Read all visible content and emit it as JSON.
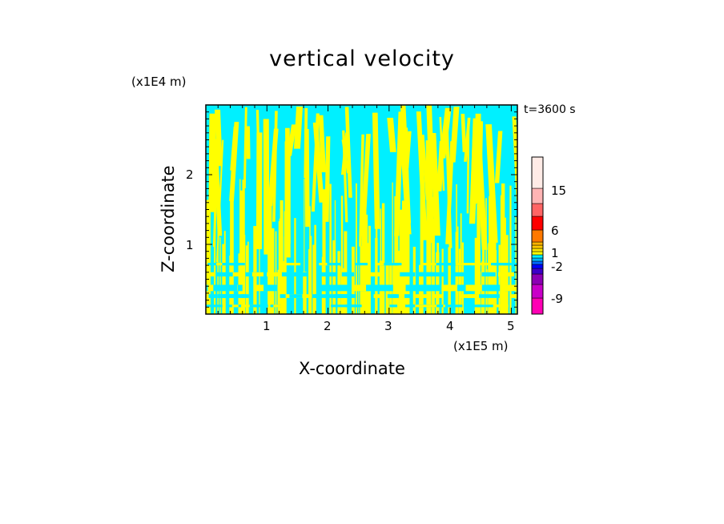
{
  "chart_data": {
    "type": "heatmap",
    "title": "vertical velocity",
    "xlabel": "X-coordinate",
    "ylabel": "Z-coordinate",
    "x_unit_label": "(x1E5 m)",
    "y_unit_label": "(x1E4 m)",
    "time_label": "t=3600 s",
    "xlim": [
      0,
      5.1
    ],
    "ylim": [
      0,
      3.0
    ],
    "x_ticks": [
      "1",
      "2",
      "3",
      "4",
      "5"
    ],
    "y_ticks": [
      "1",
      "2"
    ],
    "field_description": "Field dominated by small positive (yellow, ~0 to 1) and small negative (cyan, ~-1 to 0) values; dense narrow vertical plumes below z~1.5, broader streaks aloft.",
    "colorbar": {
      "levels": [
        {
          "color": "#ff00b4",
          "range": "< -9"
        },
        {
          "color": "#c800c8",
          "range": "-9 to -6"
        },
        {
          "color": "#8c00b4",
          "range": "-6 to -4"
        },
        {
          "color": "#3c00c8",
          "range": "-4 to -2"
        },
        {
          "color": "#0000ff",
          "range": "-2 to -1.5"
        },
        {
          "color": "#0064ff",
          "range": "-1.5 to -1"
        },
        {
          "color": "#00b4ff",
          "range": "-1 to -0.5"
        },
        {
          "color": "#00f0ff",
          "range": "-0.5 to 0"
        },
        {
          "color": "#ffff00",
          "range": "0 to 0.5"
        },
        {
          "color": "#ffe600",
          "range": "0.5 to 1"
        },
        {
          "color": "#ffc800",
          "range": "1 to 1.5"
        },
        {
          "color": "#ffb400",
          "range": "1.5 to 2"
        },
        {
          "color": "#ff7800",
          "range": "2 to 6"
        },
        {
          "color": "#ff0000",
          "range": "6 to 10"
        },
        {
          "color": "#ff6464",
          "range": "10 to 15"
        },
        {
          "color": "#ffb4b4",
          "range": "15 to 20"
        },
        {
          "color": "#ffebe6",
          "range": "> 20"
        }
      ],
      "tick_labels": [
        "15",
        "6",
        "1",
        "-2",
        "-9"
      ]
    }
  }
}
